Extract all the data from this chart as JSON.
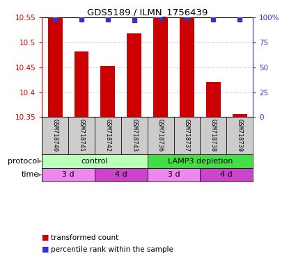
{
  "title": "GDS5189 / ILMN_1756439",
  "samples": [
    "GSM718740",
    "GSM718741",
    "GSM718742",
    "GSM718743",
    "GSM718736",
    "GSM718737",
    "GSM718738",
    "GSM718739"
  ],
  "red_values": [
    10.548,
    10.482,
    10.452,
    10.518,
    10.55,
    10.548,
    10.42,
    10.356
  ],
  "blue_values": [
    98,
    98,
    98,
    97,
    99,
    99,
    98,
    98
  ],
  "ylim_left": [
    10.35,
    10.55
  ],
  "ylim_right": [
    0,
    100
  ],
  "yticks_left": [
    10.35,
    10.4,
    10.45,
    10.5,
    10.55
  ],
  "yticks_right": [
    0,
    25,
    50,
    75,
    100
  ],
  "ytick_labels_right": [
    "0",
    "25",
    "50",
    "75",
    "100%"
  ],
  "bar_color": "#cc0000",
  "square_color": "#3333cc",
  "protocol_groups": [
    {
      "label": "control",
      "start": 0,
      "end": 4,
      "color": "#bbffbb"
    },
    {
      "label": "LAMP3 depletion",
      "start": 4,
      "end": 8,
      "color": "#44dd44"
    }
  ],
  "time_groups": [
    {
      "label": "3 d",
      "start": 0,
      "end": 2,
      "color": "#ee88ee"
    },
    {
      "label": "4 d",
      "start": 2,
      "end": 4,
      "color": "#cc44cc"
    },
    {
      "label": "3 d",
      "start": 4,
      "end": 6,
      "color": "#ee88ee"
    },
    {
      "label": "4 d",
      "start": 6,
      "end": 8,
      "color": "#cc44cc"
    }
  ],
  "legend_red": "transformed count",
  "legend_blue": "percentile rank within the sample",
  "label_protocol": "protocol",
  "label_time": "time",
  "grid_color": "#aaaaaa",
  "sample_bg": "#cccccc",
  "bar_bottom": 10.35
}
